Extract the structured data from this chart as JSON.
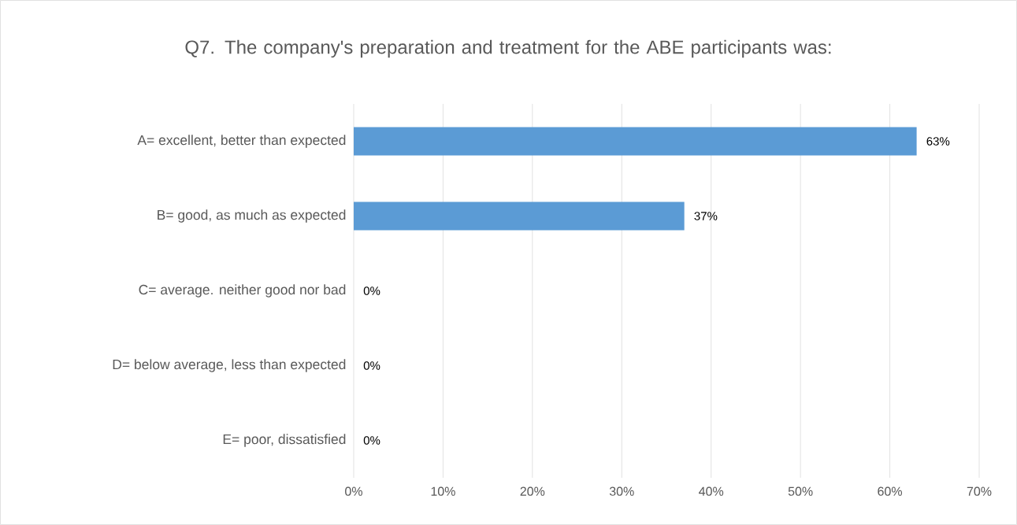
{
  "chart_data": {
    "type": "bar",
    "orientation": "horizontal",
    "title": "Q7. The company's preparation and treatment for the ABE participants was:",
    "categories": [
      "A= excellent, better than expected",
      "B= good, as much as expected",
      "C= average. neither good nor bad",
      "D= below average, less than expected",
      "E= poor, dissatisfied"
    ],
    "values": [
      63,
      37,
      0,
      0,
      0
    ],
    "value_labels": [
      "63%",
      "37%",
      "0%",
      "0%",
      "0%"
    ],
    "color": "#5b9bd5",
    "xlim": [
      0,
      70
    ],
    "xticks": [
      {
        "value": 0,
        "label": "0%"
      },
      {
        "value": 10,
        "label": "10%"
      },
      {
        "value": 20,
        "label": "20%"
      },
      {
        "value": 30,
        "label": "30%"
      },
      {
        "value": 40,
        "label": "40%"
      },
      {
        "value": 50,
        "label": "50%"
      },
      {
        "value": 60,
        "label": "60%"
      },
      {
        "value": 70,
        "label": "70%"
      }
    ],
    "grid": "x"
  }
}
